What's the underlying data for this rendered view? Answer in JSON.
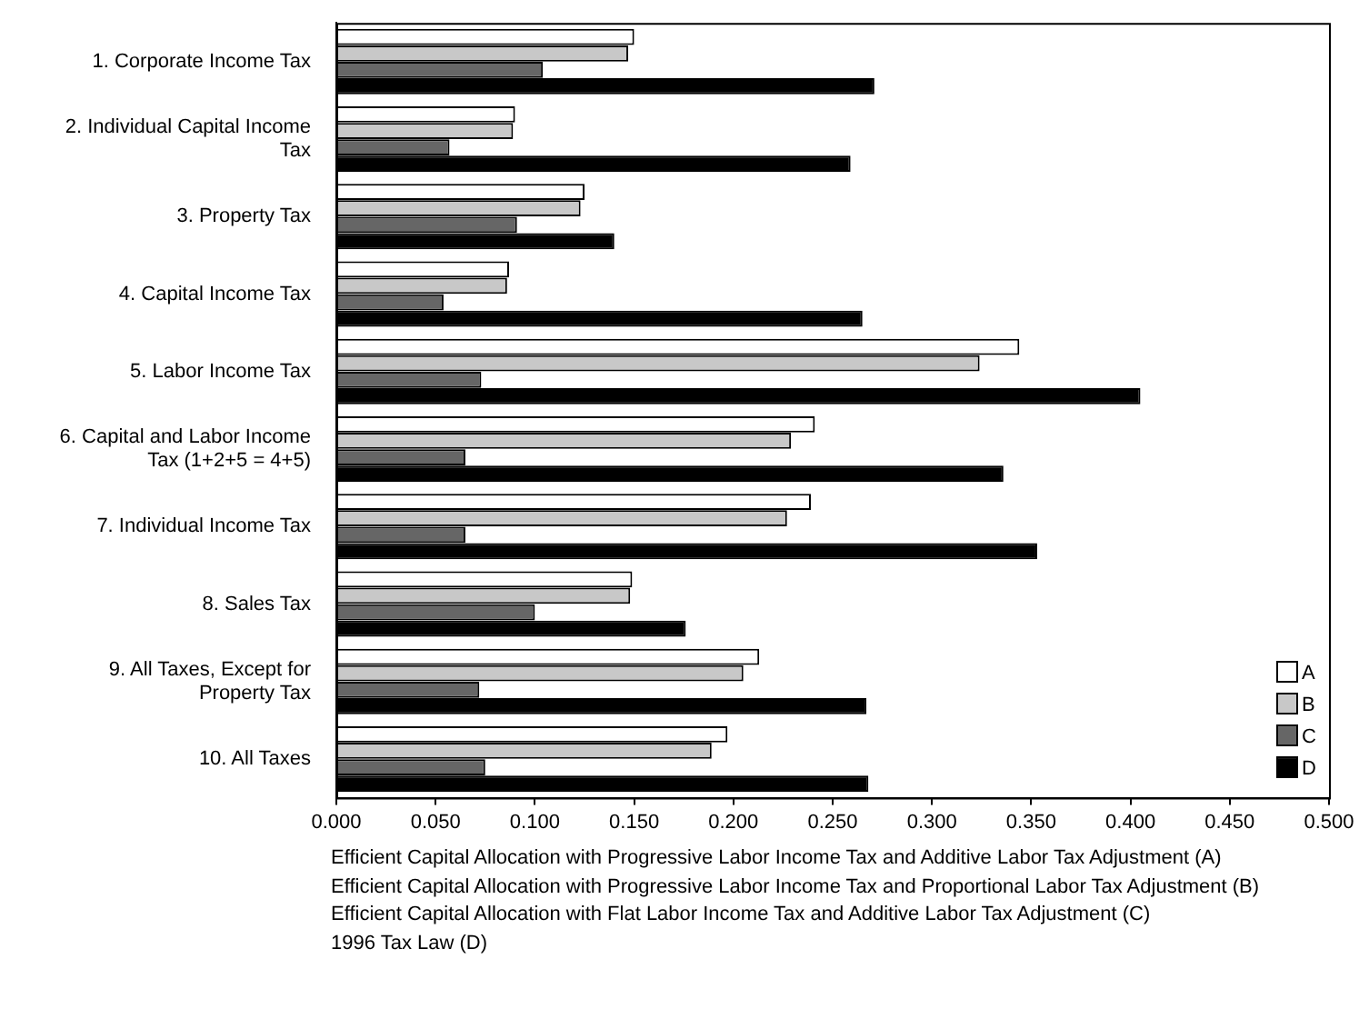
{
  "chart_data": {
    "type": "bar",
    "orientation": "horizontal",
    "categories": [
      "1. Corporate Income Tax",
      "2. Individual Capital Income Tax",
      "3. Property Tax",
      "4. Capital Income Tax",
      "5. Labor Income Tax",
      "6. Capital and Labor Income Tax (1+2+5 = 4+5)",
      "7. Individual Income Tax",
      "8. Sales Tax",
      "9. All Taxes, Except for Property Tax",
      "10. All Taxes"
    ],
    "series": [
      {
        "name": "A",
        "color": "#ffffff",
        "values": [
          0.15,
          0.09,
          0.125,
          0.087,
          0.344,
          0.241,
          0.239,
          0.149,
          0.213,
          0.197
        ]
      },
      {
        "name": "B",
        "color": "#c8c8c8",
        "values": [
          0.147,
          0.089,
          0.123,
          0.086,
          0.324,
          0.229,
          0.227,
          0.148,
          0.205,
          0.189
        ]
      },
      {
        "name": "C",
        "color": "#666666",
        "values": [
          0.104,
          0.057,
          0.091,
          0.054,
          0.073,
          0.065,
          0.065,
          0.1,
          0.072,
          0.075
        ]
      },
      {
        "name": "D",
        "color": "#000000",
        "values": [
          0.271,
          0.259,
          0.14,
          0.265,
          0.405,
          0.336,
          0.353,
          0.176,
          0.267,
          0.268
        ]
      }
    ],
    "xlim": [
      0,
      0.5
    ],
    "xticks": [
      {
        "value": 0,
        "label": "0.000"
      },
      {
        "value": 0.05,
        "label": "0.050"
      },
      {
        "value": 0.1,
        "label": "0.100"
      },
      {
        "value": 0.15,
        "label": "0.150"
      },
      {
        "value": 0.2,
        "label": "0.200"
      },
      {
        "value": 0.25,
        "label": "0.250"
      },
      {
        "value": 0.3,
        "label": "0.300"
      },
      {
        "value": 0.35,
        "label": "0.350"
      },
      {
        "value": 0.4,
        "label": "0.400"
      },
      {
        "value": 0.45,
        "label": "0.450"
      },
      {
        "value": 0.5,
        "label": "0.500"
      }
    ],
    "grid": false,
    "legend": "bottom right",
    "annotations": [
      "Efficient Capital Allocation with Progressive Labor Income Tax and Additive Labor Tax Adjustment (A)",
      "Efficient Capital Allocation with Progressive Labor Income Tax and Proportional Labor Tax Adjustment (B)",
      "Efficient Capital Allocation with Flat Labor Income Tax and Additive Labor Tax Adjustment (C)",
      "1996 Tax Law (D)"
    ]
  }
}
